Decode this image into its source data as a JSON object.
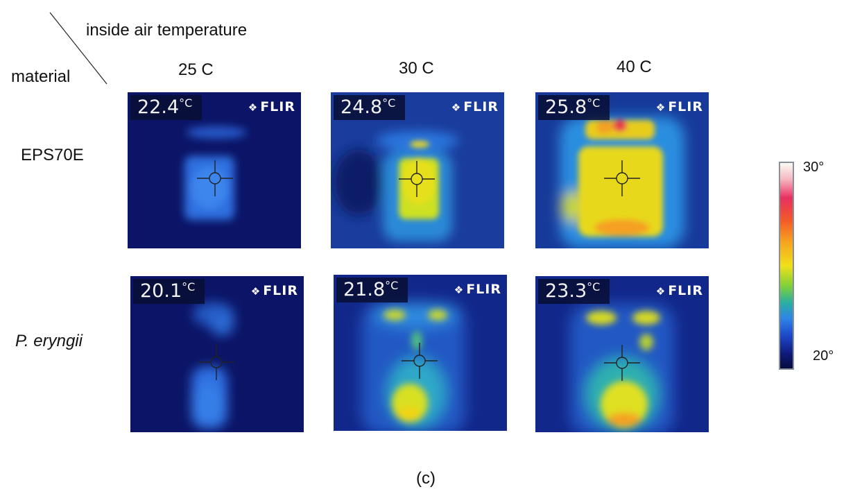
{
  "corner": {
    "col_header": "inside air temperature",
    "row_header": "material"
  },
  "columns": [
    "25 C",
    "30 C",
    "40 C"
  ],
  "rows": [
    {
      "label": "EPS70E",
      "readings": [
        "22.4",
        "24.8",
        "25.8"
      ]
    },
    {
      "label": "P. eryngii",
      "readings": [
        "20.1",
        "21.8",
        "23.3"
      ]
    }
  ],
  "unit": "°C",
  "brand": "FLIR",
  "scale": {
    "max": "30°",
    "min": "20°"
  },
  "caption": "(c)",
  "palette": {
    "background": "#0b1466",
    "cool": "#2d6fe0",
    "warm": "#f1e018",
    "hot": "#e83060"
  }
}
